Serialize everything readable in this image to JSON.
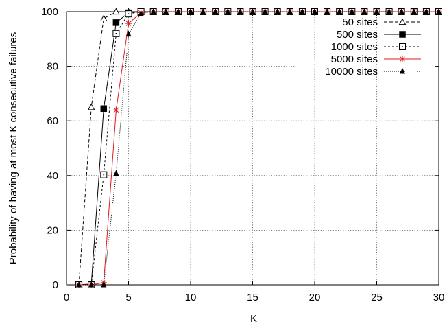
{
  "chart_data": {
    "type": "line",
    "xlabel": "K",
    "ylabel": "Probability of having at most K consecutive failures",
    "xlim": [
      0,
      30
    ],
    "ylim": [
      0,
      100
    ],
    "xticks": [
      0,
      5,
      10,
      15,
      20,
      25,
      30
    ],
    "yticks": [
      0,
      20,
      40,
      60,
      80,
      100
    ],
    "grid": true,
    "legend_position": "top-right",
    "series": [
      {
        "name": "50 sites",
        "color": "#000000",
        "dash": "dashed",
        "marker": "open-triangle",
        "x": [
          1,
          2,
          3,
          4,
          5,
          6,
          7,
          8,
          9,
          10,
          11,
          12,
          13,
          14,
          15,
          16,
          17,
          18,
          19,
          20,
          21,
          22,
          23,
          24,
          25,
          26,
          27,
          28,
          29,
          30
        ],
        "y": [
          0,
          65,
          97.5,
          100,
          100,
          100,
          100,
          100,
          100,
          100,
          100,
          100,
          100,
          100,
          100,
          100,
          100,
          100,
          100,
          100,
          100,
          100,
          100,
          100,
          100,
          100,
          100,
          100,
          100,
          100
        ]
      },
      {
        "name": "500 sites",
        "color": "#000000",
        "dash": "solid",
        "marker": "filled-square",
        "x": [
          1,
          2,
          3,
          4,
          5,
          6,
          7,
          8,
          9,
          10,
          11,
          12,
          13,
          14,
          15,
          16,
          17,
          18,
          19,
          20,
          21,
          22,
          23,
          24,
          25,
          26,
          27,
          28,
          29,
          30
        ],
        "y": [
          0,
          0.3,
          64.5,
          96,
          99.6,
          100,
          100,
          100,
          100,
          100,
          100,
          100,
          100,
          100,
          100,
          100,
          100,
          100,
          100,
          100,
          100,
          100,
          100,
          100,
          100,
          100,
          100,
          100,
          100,
          100
        ]
      },
      {
        "name": "1000 sites",
        "color": "#000000",
        "dash": "short-dash",
        "marker": "open-square",
        "x": [
          1,
          2,
          3,
          4,
          5,
          6,
          7,
          8,
          9,
          10,
          11,
          12,
          13,
          14,
          15,
          16,
          17,
          18,
          19,
          20,
          21,
          22,
          23,
          24,
          25,
          26,
          27,
          28,
          29,
          30
        ],
        "y": [
          0,
          0,
          40.3,
          92,
          99.2,
          100,
          100,
          100,
          100,
          100,
          100,
          100,
          100,
          100,
          100,
          100,
          100,
          100,
          100,
          100,
          100,
          100,
          100,
          100,
          100,
          100,
          100,
          100,
          100,
          100
        ]
      },
      {
        "name": "5000 sites",
        "color": "#e0191b",
        "dash": "solid",
        "marker": "star",
        "x": [
          1,
          2,
          3,
          4,
          5,
          6,
          7,
          8,
          9,
          10,
          11,
          12,
          13,
          14,
          15,
          16,
          17,
          18,
          19,
          20,
          21,
          22,
          23,
          24,
          25,
          26,
          27,
          28,
          29,
          30
        ],
        "y": [
          0,
          0,
          0.8,
          64,
          95.7,
          99.6,
          100,
          100,
          100,
          100,
          100,
          100,
          100,
          100,
          100,
          100,
          100,
          100,
          100,
          100,
          100,
          100,
          100,
          100,
          100,
          100,
          100,
          100,
          100,
          100
        ]
      },
      {
        "name": "10000 sites",
        "color": "#000000",
        "dash": "dotted",
        "marker": "filled-triangle",
        "x": [
          1,
          2,
          3,
          4,
          5,
          6,
          7,
          8,
          9,
          10,
          11,
          12,
          13,
          14,
          15,
          16,
          17,
          18,
          19,
          20,
          21,
          22,
          23,
          24,
          25,
          26,
          27,
          28,
          29,
          30
        ],
        "y": [
          0,
          0,
          0,
          40.8,
          91.8,
          99.3,
          100,
          100,
          100,
          100,
          100,
          100,
          100,
          100,
          100,
          100,
          100,
          100,
          100,
          100,
          100,
          100,
          100,
          100,
          100,
          100,
          100,
          100,
          100,
          100
        ]
      }
    ]
  }
}
